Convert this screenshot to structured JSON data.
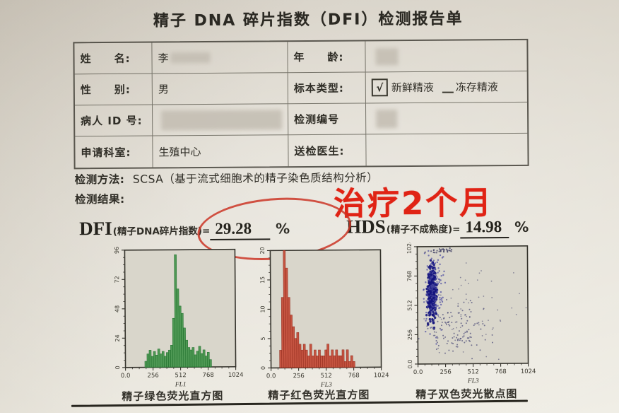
{
  "report": {
    "title": "精子 DNA 碎片指数（DFI）检测报告单",
    "table": {
      "name_label": "姓　　名:",
      "name_value": "李",
      "age_label": "年　　龄:",
      "gender_label": "性　　别:",
      "gender_value": "男",
      "specimen_label": "标本类型:",
      "specimen_check": "√",
      "specimen_fresh": "新鲜精液",
      "specimen_frozen": "冻存精液",
      "patient_id_label": "病人 ID 号:",
      "test_no_label": "检测编号",
      "dept_label": "申请科室:",
      "dept_value": "生殖中心",
      "doctor_label": "送检医生:"
    },
    "method_label": "检测方法:",
    "method_value": "SCSA（基于流式细胞术的精子染色质结构分析）",
    "result_label": "检测结果:",
    "annotation": "治疗2个月",
    "dfi": {
      "abbr": "DFI",
      "paren": "(精子DNA碎片指数)=",
      "value": "29.28",
      "unit": "%"
    },
    "hds": {
      "abbr": "HDS",
      "paren": "(精子不成熟度)=",
      "value": "14.98",
      "unit": "%"
    },
    "captions": [
      "精子绿色荧光直方图",
      "精子红色荧光直方图",
      "精子双色荧光散点图"
    ]
  },
  "colors": {
    "ink": "#2f2d26",
    "annotation_red": "#e02315",
    "ellipse_red": "#cb3526",
    "green_hist": "#3a8f43",
    "red_hist": "#c2422e",
    "scatter_blue": "#15157e",
    "paper": "#e2ddd2",
    "plot_bg": "#d9d6cb"
  },
  "chart_data": [
    {
      "type": "bar",
      "title": "精子绿色荧光直方图",
      "xlabel": "FL1",
      "x_ticks": [
        "0.0",
        "256",
        "512",
        "768",
        "1024"
      ],
      "y_ticks": [
        "0",
        "24",
        "48",
        "72",
        "96"
      ],
      "xlim": [
        0,
        1024
      ],
      "ylim": [
        0,
        96
      ],
      "bin_width": 20,
      "color": "#3a8f43",
      "edge": "#1e6e2b",
      "values": [
        0,
        0,
        0,
        0,
        0,
        0,
        0,
        0,
        0,
        5,
        11,
        14,
        9,
        13,
        10,
        15,
        11,
        13,
        9,
        12,
        14,
        18,
        40,
        92,
        64,
        50,
        44,
        32,
        22,
        16,
        14,
        16,
        10,
        13,
        17,
        11,
        14,
        9,
        12,
        6,
        0,
        0,
        0,
        0,
        0,
        0,
        0,
        0,
        0,
        0,
        0
      ]
    },
    {
      "type": "bar",
      "title": "精子红色荧光直方图",
      "xlabel": "FL3",
      "x_ticks": [
        "0.0",
        "256",
        "512",
        "768",
        "1024"
      ],
      "y_ticks": [
        "0",
        "5",
        "10",
        "15",
        "20"
      ],
      "xlim": [
        0,
        1024
      ],
      "ylim": [
        0,
        20
      ],
      "bin_width": 20,
      "color": "#c2422e",
      "edge": "#8f2a1c",
      "values": [
        0,
        0,
        0,
        0,
        3,
        12,
        20,
        17,
        12,
        9,
        7,
        5,
        6,
        4,
        3,
        4,
        3,
        2,
        4,
        2,
        3,
        2,
        3,
        2,
        2,
        3,
        4,
        2,
        3,
        2,
        3,
        2,
        2,
        3,
        1,
        3,
        1,
        2,
        1,
        0,
        0,
        0,
        0,
        0,
        0,
        0,
        0,
        0,
        0,
        0,
        0
      ]
    },
    {
      "type": "scatter",
      "title": "精子双色荧光散点图",
      "xlabel": "FL3",
      "x_ticks": [
        "0.0",
        "256",
        "512",
        "768",
        "1024"
      ],
      "y_ticks": [
        "0.0",
        "256",
        "512",
        "768",
        "1024"
      ],
      "xlim": [
        0,
        1024
      ],
      "ylim": [
        0,
        1024
      ],
      "clusters": [
        {
          "label": "main-population",
          "count": 380,
          "cx": 135,
          "cy": 630,
          "sx": 20,
          "sy": 100,
          "r": 1.7,
          "color": "#15157e",
          "opacity": 0.9
        },
        {
          "label": "halo",
          "count": 170,
          "cx": 150,
          "cy": 660,
          "sx": 42,
          "sy": 165,
          "r": 1.2,
          "color": "#4848a0",
          "opacity": 0.7
        },
        {
          "label": "dfi-diffuse",
          "count": 120,
          "cx": 340,
          "cy": 300,
          "sx": 165,
          "sy": 125,
          "r": 1.0,
          "color": "#3c3c6e",
          "opacity": 0.65
        },
        {
          "label": "sparse",
          "count": 70,
          "cx": 520,
          "cy": 470,
          "sx": 270,
          "sy": 250,
          "r": 0.9,
          "color": "#44446f",
          "opacity": 0.55
        },
        {
          "label": "top-streak",
          "count": 28,
          "cx": 230,
          "cy": 990,
          "sx": 70,
          "sy": 10,
          "r": 1.1,
          "color": "#33335c",
          "opacity": 0.7
        }
      ]
    }
  ]
}
